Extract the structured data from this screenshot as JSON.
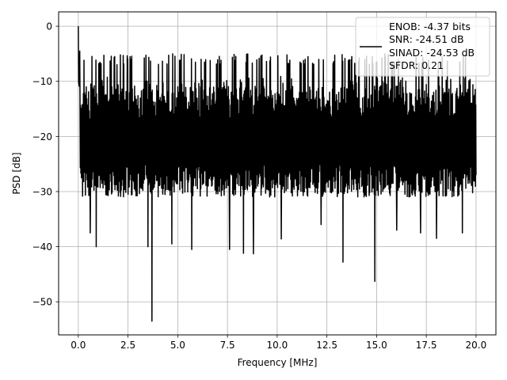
{
  "chart_data": {
    "type": "line",
    "title": "",
    "xlabel": "Frequency [MHz]",
    "ylabel": "PSD [dB]",
    "xlim": [
      -0.99,
      21.0
    ],
    "ylim": [
      -56.0,
      2.6
    ],
    "xticks": [
      0.0,
      2.5,
      5.0,
      7.5,
      10.0,
      12.5,
      15.0,
      17.5,
      20.0
    ],
    "xtick_labels": [
      "0.0",
      "2.5",
      "5.0",
      "7.5",
      "10.0",
      "12.5",
      "15.0",
      "17.5",
      "20.0"
    ],
    "yticks": [
      0,
      -10,
      -20,
      -30,
      -40,
      -50
    ],
    "ytick_labels": [
      "0",
      "−10",
      "−20",
      "−30",
      "−40",
      "−50"
    ],
    "grid": true,
    "legend_position": "top-right",
    "legend": [
      "ENOB: -4.37 bits",
      "SNR: -24.51 dB",
      "SINAD: -24.53 dB",
      "SFDR: 0.21"
    ],
    "line_color": "#000000",
    "series": [
      {
        "x_range": [
          0.0,
          20.0
        ],
        "spectrum_band_db": [
          -15,
          -9
        ],
        "noise_floor_db": [
          -25,
          -30
        ],
        "peak_db": 0.0,
        "notable_dips": [
          {
            "x": 0.6,
            "y": -37.5
          },
          {
            "x": 0.9,
            "y": -40.0
          },
          {
            "x": 3.5,
            "y": -40.0
          },
          {
            "x": 3.7,
            "y": -53.5
          },
          {
            "x": 4.7,
            "y": -39.5
          },
          {
            "x": 5.7,
            "y": -40.5
          },
          {
            "x": 7.6,
            "y": -40.5
          },
          {
            "x": 8.3,
            "y": -41.2
          },
          {
            "x": 8.8,
            "y": -41.3
          },
          {
            "x": 10.2,
            "y": -38.6
          },
          {
            "x": 12.2,
            "y": -36.0
          },
          {
            "x": 13.3,
            "y": -42.8
          },
          {
            "x": 14.9,
            "y": -46.3
          },
          {
            "x": 16.0,
            "y": -37.0
          },
          {
            "x": 17.2,
            "y": -37.5
          },
          {
            "x": 18.0,
            "y": -38.5
          },
          {
            "x": 19.3,
            "y": -37.5
          }
        ]
      }
    ]
  }
}
